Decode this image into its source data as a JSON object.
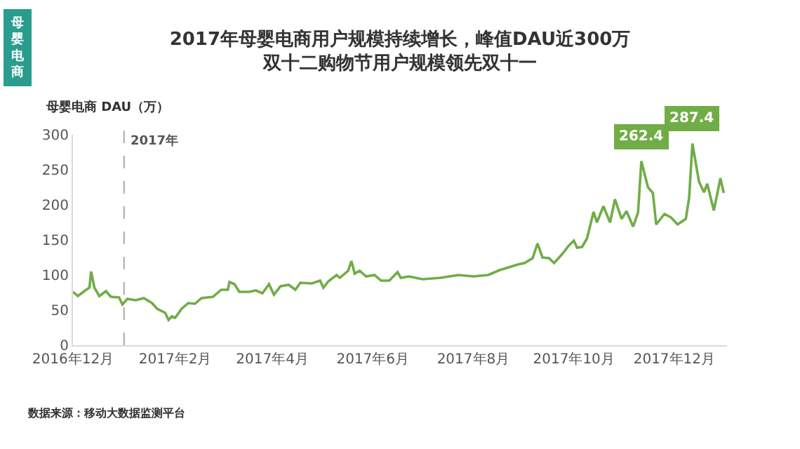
{
  "chart_data": {
    "type": "line",
    "title": "2017年母婴电商用户规模持续增长，峰值DAU近300万",
    "subtitle": "双十二购物节用户规模领先双十一",
    "ylabel": "母婴电商 DAU（万）",
    "x": [
      "2016-12-01",
      "2016-12-04",
      "2016-12-09",
      "2016-12-11",
      "2016-12-12",
      "2016-12-14",
      "2016-12-17",
      "2016-12-21",
      "2016-12-24",
      "2016-12-29",
      "2016-12-31",
      "2017-01-03",
      "2017-01-08",
      "2017-01-13",
      "2017-01-18",
      "2017-01-21",
      "2017-01-26",
      "2017-01-28",
      "2017-01-30",
      "2017-02-01",
      "2017-02-05",
      "2017-02-09",
      "2017-02-13",
      "2017-02-17",
      "2017-02-24",
      "2017-03-01",
      "2017-03-05",
      "2017-03-06",
      "2017-03-09",
      "2017-03-12",
      "2017-03-18",
      "2017-03-22",
      "2017-03-26",
      "2017-03-30",
      "2017-04-02",
      "2017-04-06",
      "2017-04-11",
      "2017-04-15",
      "2017-04-18",
      "2017-04-25",
      "2017-04-30",
      "2017-05-02",
      "2017-05-05",
      "2017-05-10",
      "2017-05-12",
      "2017-05-17",
      "2017-05-19",
      "2017-05-21",
      "2017-05-24",
      "2017-05-28",
      "2017-06-02",
      "2017-06-06",
      "2017-06-11",
      "2017-06-16",
      "2017-06-18",
      "2017-06-23",
      "2017-07-01",
      "2017-07-12",
      "2017-07-23",
      "2017-08-01",
      "2017-08-10",
      "2017-08-17",
      "2017-08-24",
      "2017-08-28",
      "2017-09-01",
      "2017-09-06",
      "2017-09-09",
      "2017-09-12",
      "2017-09-16",
      "2017-09-19",
      "2017-09-24",
      "2017-09-28",
      "2017-10-01",
      "2017-10-03",
      "2017-10-06",
      "2017-10-09",
      "2017-10-13",
      "2017-10-15",
      "2017-10-19",
      "2017-10-23",
      "2017-10-26",
      "2017-10-30",
      "2017-11-02",
      "2017-11-06",
      "2017-11-09",
      "2017-11-11",
      "2017-11-15",
      "2017-11-18",
      "2017-11-20",
      "2017-11-25",
      "2017-11-29",
      "2017-12-03",
      "2017-12-08",
      "2017-12-10",
      "2017-12-12",
      "2017-12-16",
      "2017-12-19",
      "2017-12-21",
      "2017-12-25",
      "2017-12-29",
      "2017-12-31"
    ],
    "series": [
      {
        "color": "#70ad47",
        "values": [
          76,
          70,
          79,
          82,
          105,
          82,
          70,
          77,
          69,
          68,
          58,
          66,
          64,
          67,
          60,
          52,
          46,
          36,
          41,
          39,
          52,
          60,
          59,
          67,
          69,
          79,
          79,
          90,
          87,
          76,
          76,
          78,
          74,
          87,
          72,
          84,
          86,
          79,
          89,
          88,
          92,
          82,
          91,
          100,
          96,
          106,
          120,
          102,
          106,
          98,
          100,
          92,
          92,
          104,
          96,
          98,
          94,
          96,
          100,
          98,
          100,
          107,
          112,
          115,
          117,
          124,
          145,
          125,
          124,
          117,
          130,
          142,
          149,
          139,
          140,
          152,
          190,
          175,
          198,
          175,
          208,
          180,
          191,
          169,
          189,
          262.4,
          225,
          217,
          172,
          187,
          182,
          172,
          180,
          210,
          287.4,
          233,
          218,
          230,
          192,
          238,
          217
        ]
      }
    ],
    "xlim": [
      "2016-12-01",
      "2018-01-02"
    ],
    "xticks": [
      {
        "value": "2016-12-01",
        "label": "2016年12月"
      },
      {
        "value": "2017-02-01",
        "label": "2017年2月"
      },
      {
        "value": "2017-04-01",
        "label": "2017年4月"
      },
      {
        "value": "2017-06-01",
        "label": "2017年6月"
      },
      {
        "value": "2017-08-01",
        "label": "2017年8月"
      },
      {
        "value": "2017-10-01",
        "label": "2017年10月"
      },
      {
        "value": "2017-12-01",
        "label": "2017年12月"
      }
    ],
    "ylim": [
      0,
      300
    ],
    "yticks": [
      0,
      50,
      100,
      150,
      200,
      250,
      300
    ],
    "grid": false,
    "marker": "none",
    "line_style": "solid",
    "ref_lines": [
      {
        "axis": "x",
        "value": "2017-01-01",
        "label": "2017年",
        "color": "#aaaaaa",
        "line_style": "dashed"
      }
    ],
    "annotations": [
      "母婴电商",
      "数据来源：移动大数据监测平台",
      {
        "text": "262.4",
        "x": "2017-11-11",
        "y": 262.4
      },
      {
        "text": "287.4",
        "x": "2017-12-12",
        "y": 287.4
      }
    ]
  }
}
